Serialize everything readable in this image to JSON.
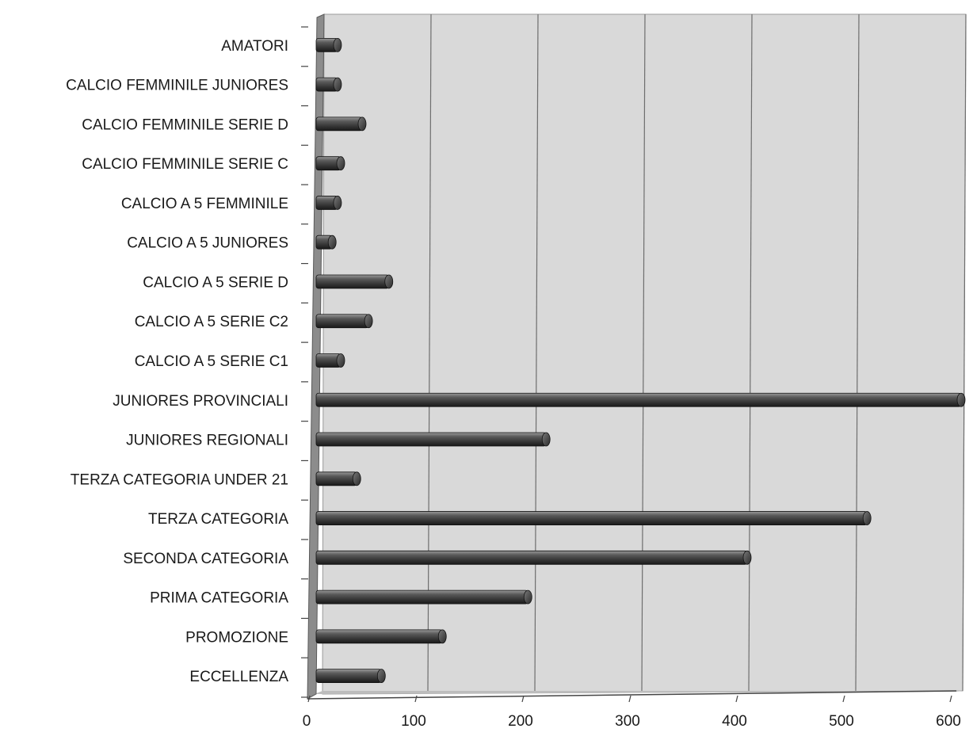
{
  "chart_data": {
    "type": "bar",
    "orientation": "horizontal",
    "style": "3d-cylinder",
    "title": "",
    "xlabel": "",
    "ylabel": "",
    "xlim": [
      0,
      600
    ],
    "x_ticks": [
      0,
      100,
      200,
      300,
      400,
      500,
      600
    ],
    "grid": "vertical",
    "legend": "none",
    "categories": [
      "AMATORI",
      "CALCIO FEMMINILE JUNIORES",
      "CALCIO FEMMINILE SERIE D",
      "CALCIO FEMMINILE SERIE C",
      "CALCIO A 5 FEMMINILE",
      "CALCIO A 5 JUNIORES",
      "CALCIO A 5 SERIE D",
      "CALCIO A 5 SERIE C2",
      "CALCIO A 5 SERIE C1",
      "JUNIORES PROVINCIALI",
      "JUNIORES REGIONALI",
      "TERZA CATEGORIA  UNDER 21",
      "TERZA CATEGORIA",
      "SECONDA CATEGORIA",
      "PRIMA CATEGORIA",
      "PROMOZIONE",
      "ECCELLENZA"
    ],
    "values": [
      17,
      17,
      40,
      20,
      17,
      12,
      65,
      46,
      20,
      600,
      212,
      35,
      512,
      400,
      195,
      115,
      58
    ],
    "colors": {
      "bar": "#4a4a4a",
      "bar_highlight": "#b0b0b0",
      "bar_dark": "#1c1c1c",
      "plot_bg": "#d9d9d9",
      "wall_side": "#8c8c8c",
      "grid": "#6e6e6e"
    }
  }
}
